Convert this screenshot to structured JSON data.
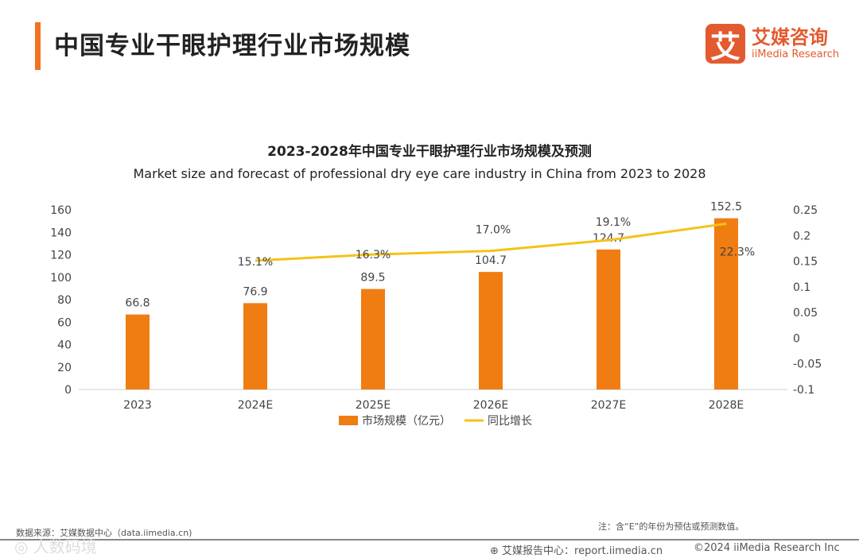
{
  "header": {
    "title": "中国专业干眼护理行业市场规模",
    "logo_mark": "艾",
    "logo_cn": "艾媒咨询",
    "logo_en": "iiMedia Research"
  },
  "chart_data": {
    "type": "bar+line",
    "title": "2023-2028年中国专业干眼护理行业市场规模及预测",
    "subtitle": "Market size and forecast of professional dry eye care industry in China from 2023 to 2028",
    "categories": [
      "2023",
      "2024E",
      "2025E",
      "2026E",
      "2027E",
      "2028E"
    ],
    "series": [
      {
        "name": "市场规模（亿元）",
        "type": "bar",
        "axis": "left",
        "color": "#f07d12",
        "values": [
          66.8,
          76.9,
          89.5,
          104.7,
          124.7,
          152.5
        ],
        "labels": [
          "66.8",
          "76.9",
          "89.5",
          "104.7",
          "124.7",
          "152.5"
        ]
      },
      {
        "name": "同比增长",
        "type": "line",
        "axis": "right",
        "color": "#f5c218",
        "values": [
          null,
          0.151,
          0.163,
          0.17,
          0.191,
          0.223
        ],
        "labels": [
          "",
          "15.1%",
          "16.3%",
          "17.0%",
          "19.1%",
          "22.3%"
        ]
      }
    ],
    "ylim_left": [
      0,
      160
    ],
    "yticks_left": [
      "0",
      "20",
      "40",
      "60",
      "80",
      "100",
      "120",
      "140",
      "160"
    ],
    "ylim_right": [
      -0.1,
      0.25
    ],
    "yticks_right": [
      "-0.1",
      "-0.05",
      "0",
      "0.05",
      "0.1",
      "0.15",
      "0.2",
      "0.25"
    ],
    "legend_position": "bottom"
  },
  "footer": {
    "source": "数据来源：艾媒数据中心（data.iimedia.cn)",
    "note": "注：含“E”的年份为预估或预测数值。",
    "report": "艾媒报告中心：report.iimedia.cn",
    "copyright": "©2024  iiMedia Research  Inc",
    "watermark": "人数码境"
  }
}
